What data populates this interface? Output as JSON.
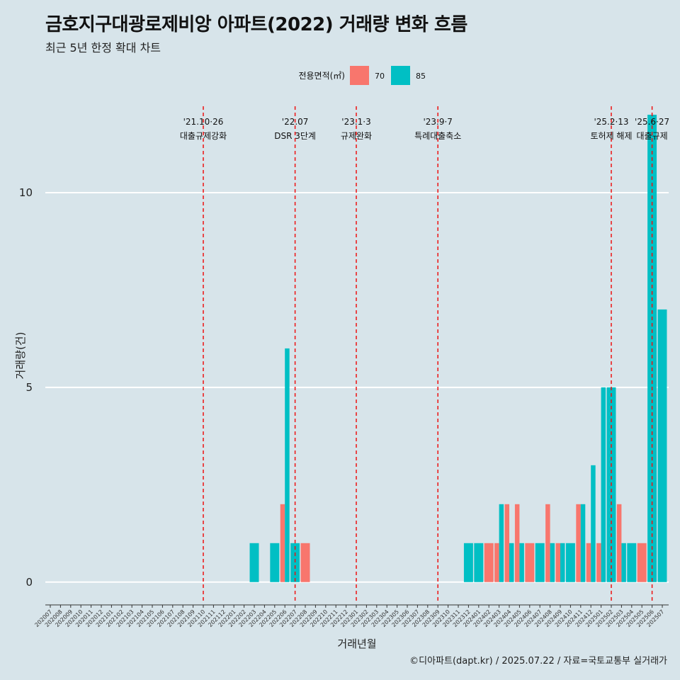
{
  "title": "금호지구대광로제비앙 아파트(2022) 거래량 변화 흐름",
  "subtitle": "최근 5년 한정 확대 차트",
  "caption": "©디아파트(dapt.kr) / 2025.07.22 / 자료=국토교통부 실거래가",
  "chart_data": {
    "type": "bar",
    "xlabel": "거래년월",
    "ylabel": "거래량(건)",
    "ylim": [
      -0.55,
      12.4
    ],
    "yticks": [
      0,
      5,
      10
    ],
    "legend": {
      "title": "전용면적(㎡)",
      "position": "top",
      "entries": [
        {
          "name": "70",
          "color": "#f8766d"
        },
        {
          "name": "85",
          "color": "#00bfc4"
        }
      ]
    },
    "categories": [
      "202007",
      "202008",
      "202009",
      "202010",
      "202011",
      "202012",
      "202101",
      "202102",
      "202103",
      "202104",
      "202105",
      "202106",
      "202107",
      "202108",
      "202109",
      "202110",
      "202111",
      "202112",
      "202201",
      "202202",
      "202203",
      "202204",
      "202205",
      "202206",
      "202207",
      "202208",
      "202209",
      "202210",
      "202211",
      "202212",
      "202301",
      "202302",
      "202303",
      "202304",
      "202305",
      "202306",
      "202307",
      "202308",
      "202309",
      "202310",
      "202311",
      "202312",
      "202401",
      "202402",
      "202403",
      "202404",
      "202405",
      "202406",
      "202407",
      "202408",
      "202409",
      "202410",
      "202411",
      "202412",
      "202501",
      "202502",
      "202503",
      "202504",
      "202505",
      "202506",
      "202507"
    ],
    "series": [
      {
        "name": "70",
        "color": "#f8766d",
        "values": [
          0,
          0,
          0,
          0,
          0,
          0,
          0,
          0,
          0,
          0,
          0,
          0,
          0,
          0,
          0,
          0,
          0,
          0,
          0,
          0,
          0,
          0,
          0,
          2,
          0,
          1,
          0,
          0,
          0,
          0,
          0,
          0,
          0,
          0,
          0,
          0,
          0,
          0,
          0,
          0,
          0,
          0,
          0,
          1,
          1,
          2,
          2,
          1,
          0,
          2,
          1,
          0,
          2,
          1,
          1,
          0,
          2,
          0,
          1,
          0,
          0
        ]
      },
      {
        "name": "85",
        "color": "#00bfc4",
        "values": [
          0,
          0,
          0,
          0,
          0,
          0,
          0,
          0,
          0,
          0,
          0,
          0,
          0,
          0,
          0,
          0,
          0,
          0,
          0,
          0,
          1,
          0,
          1,
          6,
          1,
          0,
          0,
          0,
          0,
          0,
          0,
          0,
          0,
          0,
          0,
          0,
          0,
          0,
          0,
          0,
          0,
          1,
          1,
          0,
          2,
          1,
          1,
          0,
          1,
          1,
          1,
          1,
          2,
          3,
          5,
          5,
          1,
          1,
          0,
          12,
          7
        ]
      }
    ],
    "events": [
      {
        "x": "202110",
        "date": "'21.10·26",
        "label": "대출규제강화"
      },
      {
        "x": "202207",
        "date": "'22.07",
        "label": "DSR 3단계"
      },
      {
        "x": "202301",
        "date": "'23.1·3",
        "label": "규제완화"
      },
      {
        "x": "202309",
        "date": "'23.9·7",
        "label": "특례대출축소"
      },
      {
        "x": "202502",
        "date": "'25.2·13",
        "label": "토허제 해제"
      },
      {
        "x": "202506",
        "date": "'25.6·27",
        "label": "대출규제"
      }
    ]
  }
}
